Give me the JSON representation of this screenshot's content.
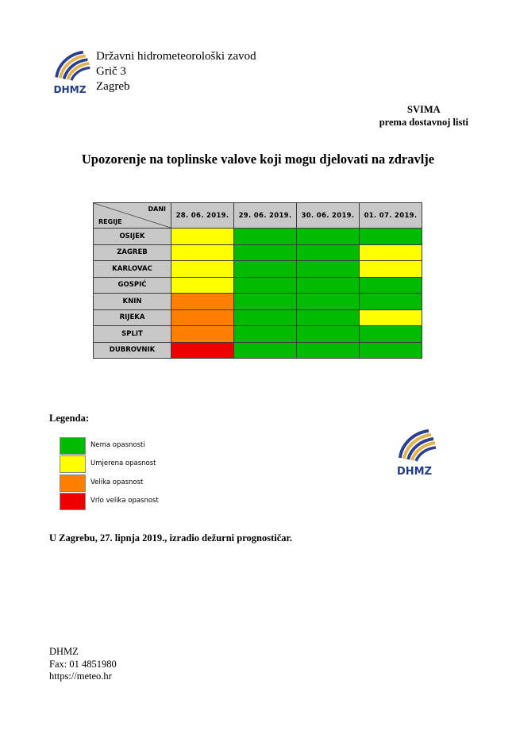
{
  "logo_text": "DHMZ",
  "org": {
    "name": "Državni hidrometeorološki zavod",
    "street": "Grič 3",
    "city": "Zagreb"
  },
  "recipient": {
    "line1": "SVIMA",
    "line2": "prema dostavnoj listi"
  },
  "title": "Upozorenje na toplinske valove koji mogu djelovati na zdravlje",
  "table": {
    "corner_days": "DANI",
    "corner_regions": "REGIJE",
    "dates": [
      "28. 06. 2019.",
      "29. 06. 2019.",
      "30. 06. 2019.",
      "01. 07. 2019."
    ],
    "rows": [
      {
        "region": "OSIJEK",
        "levels": [
          "yellow",
          "green",
          "green",
          "green"
        ]
      },
      {
        "region": "ZAGREB",
        "levels": [
          "yellow",
          "green",
          "green",
          "yellow"
        ]
      },
      {
        "region": "KARLOVAC",
        "levels": [
          "yellow",
          "green",
          "green",
          "yellow"
        ]
      },
      {
        "region": "GOSPIĆ",
        "levels": [
          "yellow",
          "green",
          "green",
          "green"
        ]
      },
      {
        "region": "KNIN",
        "levels": [
          "orange",
          "green",
          "green",
          "green"
        ]
      },
      {
        "region": "RIJEKA",
        "levels": [
          "orange",
          "green",
          "green",
          "yellow"
        ]
      },
      {
        "region": "SPLIT",
        "levels": [
          "orange",
          "green",
          "green",
          "green"
        ]
      },
      {
        "region": "DUBROVNIK",
        "levels": [
          "red",
          "green",
          "green",
          "green"
        ]
      }
    ]
  },
  "colors": {
    "green": "#00bb00",
    "yellow": "#ffff00",
    "orange": "#ff8000",
    "red": "#ee0000"
  },
  "legend": {
    "title": "Legenda:",
    "items": [
      {
        "level": "green",
        "label": "Nema opasnosti"
      },
      {
        "level": "yellow",
        "label": "Umjerena opasnost"
      },
      {
        "level": "orange",
        "label": "Velika opasnost"
      },
      {
        "level": "red",
        "label": "Vrlo velika opasnost"
      }
    ]
  },
  "signoff": "U Zagrebu, 27. lipnja 2019., izradio dežurni prognostičar.",
  "footer": {
    "line1": "DHMZ",
    "line2": "Fax: 01 4851980",
    "line3": "https://meteo.hr"
  }
}
